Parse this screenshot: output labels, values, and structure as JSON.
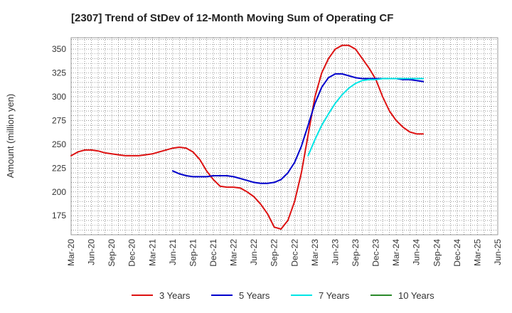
{
  "chart_data": {
    "type": "line",
    "title": "[2307]  Trend of StDev of 12-Month Moving Sum of Operating CF",
    "xlabel": "",
    "ylabel": "Amount (million yen)",
    "ylim": [
      155,
      362
    ],
    "yticks": [
      175,
      200,
      225,
      250,
      275,
      300,
      325,
      350
    ],
    "x_labels": [
      "Mar-20",
      "Jun-20",
      "Sep-20",
      "Dec-20",
      "Mar-21",
      "Jun-21",
      "Sep-21",
      "Dec-21",
      "Mar-22",
      "Jun-22",
      "Sep-22",
      "Dec-22",
      "Mar-23",
      "Jun-23",
      "Sep-23",
      "Dec-23",
      "Mar-24",
      "Jun-24",
      "Sep-24",
      "Dec-24",
      "Mar-25",
      "Jun-25"
    ],
    "grid": true,
    "legend_position": "bottom",
    "series": [
      {
        "name": "3 Years",
        "color": "#dd1111",
        "values": [
          238,
          242,
          244,
          244,
          243,
          241,
          240,
          239,
          238,
          238,
          238,
          239,
          240,
          242,
          244,
          246,
          247,
          246,
          242,
          234,
          222,
          213,
          206,
          205,
          205,
          204,
          200,
          195,
          187,
          177,
          163,
          161,
          170,
          190,
          220,
          260,
          300,
          325,
          340,
          350,
          354,
          354,
          350,
          340,
          330,
          318,
          300,
          285,
          275,
          268,
          263,
          261,
          261
        ]
      },
      {
        "name": "5 Years",
        "color": "#0000cc",
        "values": [
          null,
          null,
          null,
          null,
          null,
          null,
          null,
          null,
          null,
          null,
          null,
          null,
          null,
          null,
          null,
          222,
          219,
          217,
          216,
          216,
          216,
          217,
          217,
          217,
          216,
          214,
          212,
          210,
          209,
          209,
          210,
          213,
          220,
          231,
          248,
          270,
          293,
          310,
          320,
          324,
          324,
          322,
          320,
          319,
          319,
          319,
          319,
          319,
          319,
          318,
          318,
          317,
          316
        ]
      },
      {
        "name": "7 Years",
        "color": "#00e5e5",
        "values": [
          null,
          null,
          null,
          null,
          null,
          null,
          null,
          null,
          null,
          null,
          null,
          null,
          null,
          null,
          null,
          null,
          null,
          null,
          null,
          null,
          null,
          null,
          null,
          null,
          null,
          null,
          null,
          null,
          null,
          null,
          null,
          null,
          null,
          null,
          null,
          238,
          255,
          270,
          282,
          293,
          302,
          309,
          314,
          317,
          318,
          318,
          319,
          319,
          319,
          319,
          319,
          319,
          319
        ]
      },
      {
        "name": "10 Years",
        "color": "#2a8a2a",
        "values": []
      }
    ]
  }
}
